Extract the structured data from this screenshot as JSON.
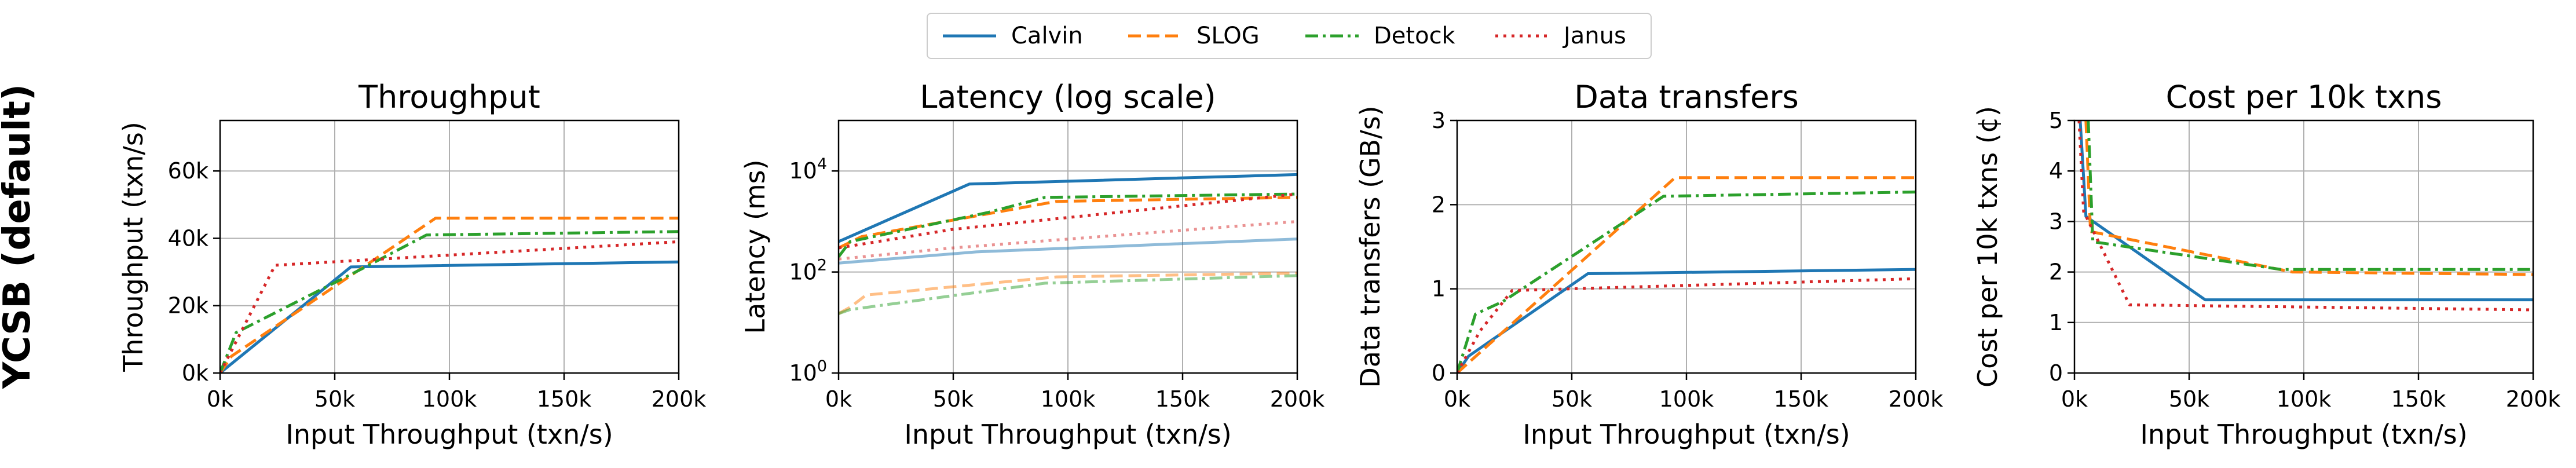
{
  "row_label": "YCSB (default)",
  "legend": [
    {
      "name": "Calvin",
      "color": "#1f77b4",
      "dash": "solid"
    },
    {
      "name": "SLOG",
      "color": "#ff7f0e",
      "dash": "dashed"
    },
    {
      "name": "Detock",
      "color": "#2ca02c",
      "dash": "dashdot"
    },
    {
      "name": "Janus",
      "color": "#d62728",
      "dash": "dotted"
    }
  ],
  "chart_data": [
    {
      "type": "line",
      "title": "Throughput",
      "xlabel": "Input Throughput (txn/s)",
      "ylabel": "Throughput (txn/s)",
      "xlim": [
        0,
        200000
      ],
      "ylim": [
        0,
        75000
      ],
      "xticks": [
        0,
        50000,
        100000,
        150000,
        200000
      ],
      "xtick_labels": [
        "0k",
        "50k",
        "100k",
        "150k",
        "200k"
      ],
      "yticks": [
        0,
        20000,
        40000,
        60000
      ],
      "ytick_labels": [
        "0k",
        "20k",
        "40k",
        "60k"
      ],
      "grid": true,
      "series": [
        {
          "name": "Calvin",
          "x": [
            0,
            57000,
            200000
          ],
          "y": [
            0,
            31500,
            33000
          ]
        },
        {
          "name": "SLOG",
          "x": [
            0,
            5000,
            94000,
            200000
          ],
          "y": [
            0,
            5000,
            46000,
            46000
          ]
        },
        {
          "name": "Detock",
          "x": [
            0,
            7000,
            62000,
            90000,
            200000
          ],
          "y": [
            0,
            12000,
            31000,
            41000,
            42000
          ]
        },
        {
          "name": "Janus",
          "x": [
            0,
            24000,
            200000
          ],
          "y": [
            0,
            32000,
            39000
          ]
        }
      ]
    },
    {
      "type": "line",
      "title": "Latency (log scale)",
      "xlabel": "Input Throughput (txn/s)",
      "ylabel": "Latency (ms)",
      "yscale": "log",
      "xlim": [
        0,
        200000
      ],
      "ylim": [
        1,
        100000
      ],
      "xticks": [
        0,
        50000,
        100000,
        150000,
        200000
      ],
      "xtick_labels": [
        "0k",
        "50k",
        "100k",
        "150k",
        "200k"
      ],
      "yticks": [
        1,
        100,
        10000
      ],
      "ytick_labels": [
        "10^0",
        "10^2",
        "10^4"
      ],
      "grid": true,
      "series": [
        {
          "name": "Calvin",
          "x": [
            0,
            57000,
            200000
          ],
          "y": [
            400,
            5500,
            8500
          ]
        },
        {
          "name": "SLOG",
          "x": [
            0,
            10000,
            95000,
            200000
          ],
          "y": [
            300,
            500,
            2500,
            3000
          ]
        },
        {
          "name": "Detock",
          "x": [
            0,
            5000,
            65000,
            90000,
            200000
          ],
          "y": [
            200,
            400,
            1500,
            3000,
            3500
          ]
        },
        {
          "name": "Janus",
          "x": [
            0,
            50000,
            200000
          ],
          "y": [
            300,
            700,
            3500
          ]
        },
        {
          "name": "",
          "faded": true,
          "color": "#1f77b4",
          "dash": "solid",
          "x": [
            0,
            60000,
            200000
          ],
          "y": [
            150,
            250,
            450
          ]
        },
        {
          "name": "",
          "faded": true,
          "color": "#ff7f0e",
          "dash": "dashed",
          "x": [
            0,
            5000,
            12000,
            95000,
            200000
          ],
          "y": [
            15,
            20,
            35,
            80,
            95
          ]
        },
        {
          "name": "",
          "faded": true,
          "color": "#2ca02c",
          "dash": "dashdot",
          "x": [
            0,
            5000,
            90000,
            200000
          ],
          "y": [
            15,
            18,
            60,
            85
          ]
        },
        {
          "name": "",
          "faded": true,
          "color": "#d62728",
          "dash": "dotted",
          "x": [
            0,
            50000,
            200000
          ],
          "y": [
            180,
            300,
            1000
          ]
        }
      ]
    },
    {
      "type": "line",
      "title": "Data transfers",
      "xlabel": "Input Throughput (txn/s)",
      "ylabel": "Data transfers (GB/s)",
      "xlim": [
        0,
        200000
      ],
      "ylim": [
        0,
        3
      ],
      "xticks": [
        0,
        50000,
        100000,
        150000,
        200000
      ],
      "xtick_labels": [
        "0k",
        "50k",
        "100k",
        "150k",
        "200k"
      ],
      "yticks": [
        0,
        1,
        2,
        3
      ],
      "ytick_labels": [
        "0",
        "1",
        "2",
        "3"
      ],
      "grid": true,
      "series": [
        {
          "name": "Calvin",
          "x": [
            0,
            5000,
            57000,
            200000
          ],
          "y": [
            0,
            0.2,
            1.18,
            1.23
          ]
        },
        {
          "name": "SLOG",
          "x": [
            0,
            95000,
            200000
          ],
          "y": [
            0,
            2.32,
            2.32
          ]
        },
        {
          "name": "Detock",
          "x": [
            0,
            8000,
            20000,
            90000,
            200000
          ],
          "y": [
            0,
            0.7,
            0.85,
            2.1,
            2.15
          ]
        },
        {
          "name": "Janus",
          "x": [
            0,
            10000,
            24000,
            200000
          ],
          "y": [
            0,
            0.5,
            0.98,
            1.12
          ]
        }
      ]
    },
    {
      "type": "line",
      "title": "Cost per 10k txns",
      "xlabel": "Input Throughput (txn/s)",
      "ylabel": "Cost per 10k txns (¢)",
      "xlim": [
        0,
        200000
      ],
      "ylim": [
        0,
        5
      ],
      "xticks": [
        0,
        50000,
        100000,
        150000,
        200000
      ],
      "xtick_labels": [
        "0k",
        "50k",
        "100k",
        "150k",
        "200k"
      ],
      "yticks": [
        0,
        1,
        2,
        3,
        4,
        5
      ],
      "ytick_labels": [
        "0",
        "1",
        "2",
        "3",
        "4",
        "5"
      ],
      "grid": true,
      "series": [
        {
          "name": "Calvin",
          "x": [
            2500,
            5000,
            57000,
            200000
          ],
          "y": [
            5,
            3.1,
            1.45,
            1.45
          ]
        },
        {
          "name": "SLOG",
          "x": [
            5000,
            7000,
            95000,
            200000
          ],
          "y": [
            5,
            2.8,
            2.0,
            1.95
          ]
        },
        {
          "name": "Detock",
          "x": [
            6000,
            8000,
            90000,
            200000
          ],
          "y": [
            5,
            2.6,
            2.05,
            2.05
          ]
        },
        {
          "name": "Janus",
          "x": [
            2000,
            4000,
            24000,
            200000
          ],
          "y": [
            5,
            3.2,
            1.35,
            1.25
          ]
        }
      ]
    }
  ]
}
